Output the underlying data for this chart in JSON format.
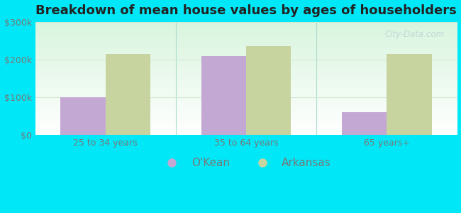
{
  "title": "Breakdown of mean house values by ages of householders",
  "categories": [
    "25 to 34 years",
    "35 to 64 years",
    "65 years+"
  ],
  "okean_values": [
    100000,
    210000,
    60000
  ],
  "arkansas_values": [
    215000,
    235000,
    215000
  ],
  "okean_color": "#c4a8d4",
  "arkansas_color": "#c8d4a0",
  "ylim": [
    0,
    300000
  ],
  "yticks": [
    0,
    100000,
    200000,
    300000
  ],
  "ytick_labels": [
    "$0",
    "$100k",
    "$200k",
    "$300k"
  ],
  "bar_width": 0.32,
  "legend_labels": [
    "O'Kean",
    "Arkansas"
  ],
  "title_fontsize": 13,
  "tick_fontsize": 9,
  "legend_fontsize": 11,
  "outer_bg": "#00e8f8",
  "plot_bg_color": "#edfaee",
  "grid_color": "#d0e8d0",
  "tick_color": "#777777",
  "title_color": "#222222",
  "watermark_color": "#c0d8d8",
  "separator_color": "#aaddcc"
}
